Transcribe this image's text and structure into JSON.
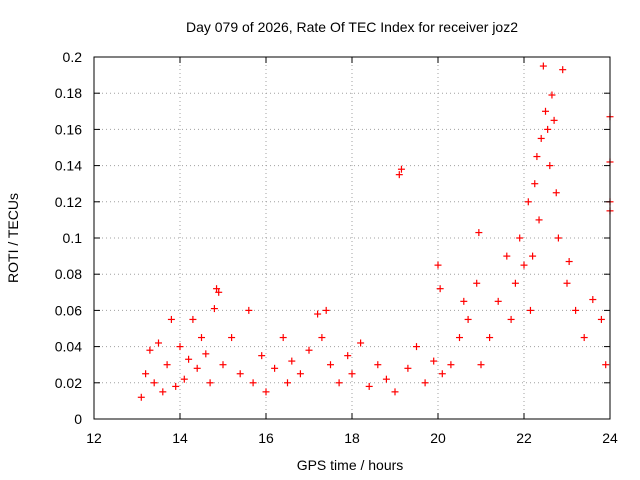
{
  "chart_data": {
    "type": "scatter",
    "title": "Day 079 of 2026, Rate Of TEC Index for receiver joz2",
    "xlabel": "GPS time / hours",
    "ylabel": "ROTI / TECUs",
    "xlim": [
      12,
      24
    ],
    "ylim": [
      0,
      0.2
    ],
    "x_ticks": [
      "12",
      "14",
      "16",
      "18",
      "20",
      "22",
      "24"
    ],
    "y_ticks": [
      "0",
      "0.02",
      "0.04",
      "0.06",
      "0.08",
      "0.1",
      "0.12",
      "0.14",
      "0.16",
      "0.18",
      "0.2"
    ],
    "grid": true,
    "marker": "+",
    "series_color": "#ff0000",
    "series": [
      {
        "name": "ROTI",
        "x": [
          13.1,
          13.2,
          13.3,
          13.4,
          13.5,
          13.6,
          13.7,
          13.8,
          13.9,
          14.0,
          14.1,
          14.2,
          14.3,
          14.4,
          14.5,
          14.6,
          14.7,
          14.8,
          14.85,
          14.9,
          15.0,
          15.2,
          15.4,
          15.6,
          15.7,
          15.9,
          16.0,
          16.2,
          16.4,
          16.5,
          16.6,
          16.8,
          17.0,
          17.2,
          17.3,
          17.4,
          17.5,
          17.7,
          17.9,
          18.0,
          18.2,
          18.4,
          18.6,
          18.8,
          19.0,
          19.1,
          19.15,
          19.3,
          19.5,
          19.7,
          19.9,
          20.0,
          20.05,
          20.1,
          20.3,
          20.5,
          20.6,
          20.7,
          20.9,
          20.95,
          21.0,
          21.2,
          21.4,
          21.6,
          21.7,
          21.8,
          21.9,
          22.0,
          22.1,
          22.15,
          22.2,
          22.25,
          22.3,
          22.35,
          22.4,
          22.45,
          22.5,
          22.55,
          22.6,
          22.65,
          22.7,
          22.75,
          22.8,
          22.9,
          23.0,
          23.05,
          23.2,
          23.4,
          23.6,
          23.8,
          23.9,
          24.0,
          24.0,
          24.0,
          24.0
        ],
        "y": [
          0.012,
          0.025,
          0.038,
          0.02,
          0.042,
          0.015,
          0.03,
          0.055,
          0.018,
          0.04,
          0.022,
          0.033,
          0.055,
          0.028,
          0.045,
          0.036,
          0.02,
          0.061,
          0.072,
          0.07,
          0.03,
          0.045,
          0.025,
          0.06,
          0.02,
          0.035,
          0.015,
          0.028,
          0.045,
          0.02,
          0.032,
          0.025,
          0.038,
          0.058,
          0.045,
          0.06,
          0.03,
          0.02,
          0.035,
          0.025,
          0.042,
          0.018,
          0.03,
          0.022,
          0.015,
          0.135,
          0.138,
          0.028,
          0.04,
          0.02,
          0.032,
          0.085,
          0.072,
          0.025,
          0.03,
          0.045,
          0.065,
          0.055,
          0.075,
          0.103,
          0.03,
          0.045,
          0.065,
          0.09,
          0.055,
          0.075,
          0.1,
          0.085,
          0.12,
          0.06,
          0.09,
          0.13,
          0.145,
          0.11,
          0.155,
          0.195,
          0.17,
          0.16,
          0.14,
          0.179,
          0.165,
          0.125,
          0.1,
          0.193,
          0.075,
          0.087,
          0.06,
          0.045,
          0.066,
          0.055,
          0.03,
          0.12,
          0.142,
          0.167,
          0.115
        ]
      }
    ]
  }
}
